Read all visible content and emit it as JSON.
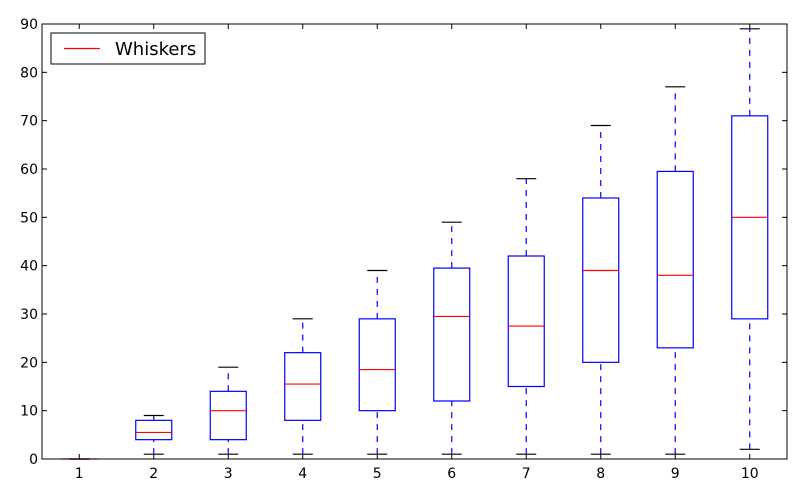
{
  "chart_data": {
    "type": "box",
    "categories": [
      "1",
      "2",
      "3",
      "4",
      "5",
      "6",
      "7",
      "8",
      "9",
      "10"
    ],
    "boxes": [
      {
        "category": "1",
        "whisker_low": 0,
        "q1": 0,
        "median": 0,
        "q3": 0,
        "whisker_high": 0
      },
      {
        "category": "2",
        "whisker_low": 1,
        "q1": 4,
        "median": 5.5,
        "q3": 8,
        "whisker_high": 9
      },
      {
        "category": "3",
        "whisker_low": 1,
        "q1": 4,
        "median": 10,
        "q3": 14,
        "whisker_high": 19
      },
      {
        "category": "4",
        "whisker_low": 1,
        "q1": 8,
        "median": 15.5,
        "q3": 22,
        "whisker_high": 29
      },
      {
        "category": "5",
        "whisker_low": 1,
        "q1": 10,
        "median": 18.5,
        "q3": 29,
        "whisker_high": 39
      },
      {
        "category": "6",
        "whisker_low": 1,
        "q1": 12,
        "median": 29.5,
        "q3": 39.5,
        "whisker_high": 49
      },
      {
        "category": "7",
        "whisker_low": 1,
        "q1": 15,
        "median": 27.5,
        "q3": 42,
        "whisker_high": 58
      },
      {
        "category": "8",
        "whisker_low": 1,
        "q1": 20,
        "median": 39,
        "q3": 54,
        "whisker_high": 69
      },
      {
        "category": "9",
        "whisker_low": 1,
        "q1": 23,
        "median": 38,
        "q3": 59.5,
        "whisker_high": 77
      },
      {
        "category": "10",
        "whisker_low": 2,
        "q1": 29,
        "median": 50,
        "q3": 71,
        "whisker_high": 89
      }
    ],
    "ylim": [
      0,
      90
    ],
    "yticks": [
      0,
      10,
      20,
      30,
      40,
      50,
      60,
      70,
      80,
      90
    ],
    "legend": {
      "entries": [
        {
          "label": "Whiskers",
          "color": "#ff0000"
        }
      ],
      "placement": "top-left"
    },
    "colors": {
      "box": "#0000ff",
      "whisker": "#0000ff",
      "cap": "#000000",
      "median": "#ff0000"
    },
    "grid": false
  }
}
